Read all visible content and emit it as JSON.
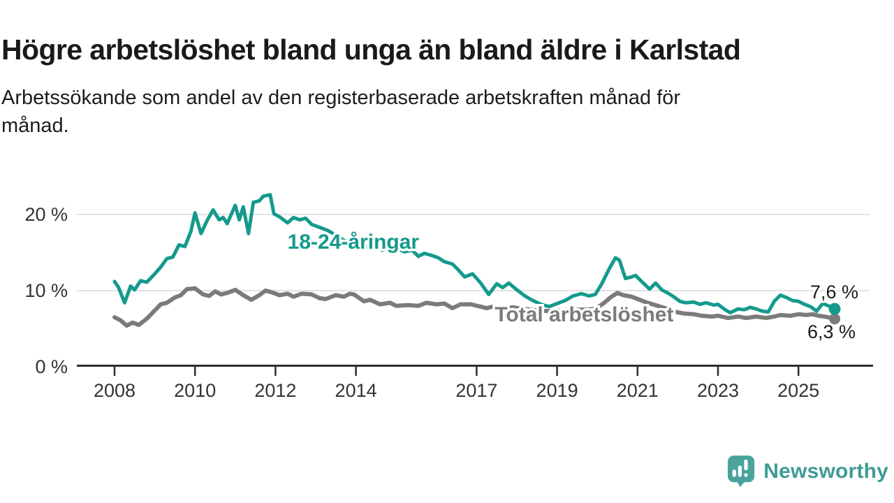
{
  "header": {
    "title": "Högre arbetslöshet bland unga än bland äldre i Karlstad",
    "subtitle_line1": "Arbetssökande som andel av den registerbaserade arbetskraften månad för",
    "subtitle_line2": "månad."
  },
  "chart_data": {
    "type": "line",
    "title": "Högre arbetslöshet bland unga än bland äldre i Karlstad",
    "subtitle": "Arbetssökande som andel av den registerbaserade arbetskraften månad för månad.",
    "unit": "%",
    "grid": "horizontal-only",
    "legend_position": "inline-labels-on-lines",
    "x_axis": {
      "tick_years": [
        2008,
        2010,
        2012,
        2014,
        2017,
        2019,
        2021,
        2023,
        2025
      ],
      "tick_labels": [
        "2008",
        "2010",
        "2012",
        "2014",
        "2017",
        "2019",
        "2021",
        "2023",
        "2025"
      ],
      "range": [
        2007.1,
        2026.8
      ]
    },
    "y_axis": {
      "tick_values": [
        0,
        10,
        20
      ],
      "tick_labels": [
        "0 %",
        "10 %",
        "20 %"
      ],
      "gridline_values": [
        10,
        20
      ],
      "range": [
        0,
        23
      ]
    },
    "series": [
      {
        "name": "Total arbetslöshet",
        "color": "#7b7b7b",
        "end_label": "6,3 %",
        "end_value": 6.3,
        "label_anchor": {
          "year": 2017.45,
          "value": 6.9
        },
        "points": [
          [
            2008.0,
            6.5
          ],
          [
            2008.15,
            6.1
          ],
          [
            2008.3,
            5.4
          ],
          [
            2008.45,
            5.8
          ],
          [
            2008.6,
            5.5
          ],
          [
            2008.8,
            6.3
          ],
          [
            2009.0,
            7.4
          ],
          [
            2009.15,
            8.2
          ],
          [
            2009.3,
            8.4
          ],
          [
            2009.5,
            9.1
          ],
          [
            2009.65,
            9.4
          ],
          [
            2009.8,
            10.2
          ],
          [
            2010.0,
            10.3
          ],
          [
            2010.2,
            9.5
          ],
          [
            2010.35,
            9.3
          ],
          [
            2010.5,
            9.9
          ],
          [
            2010.65,
            9.5
          ],
          [
            2010.8,
            9.7
          ],
          [
            2011.0,
            10.1
          ],
          [
            2011.2,
            9.4
          ],
          [
            2011.4,
            8.8
          ],
          [
            2011.6,
            9.4
          ],
          [
            2011.75,
            10.0
          ],
          [
            2011.9,
            9.8
          ],
          [
            2012.1,
            9.4
          ],
          [
            2012.3,
            9.6
          ],
          [
            2012.45,
            9.2
          ],
          [
            2012.65,
            9.6
          ],
          [
            2012.9,
            9.5
          ],
          [
            2013.1,
            9.0
          ],
          [
            2013.25,
            8.9
          ],
          [
            2013.5,
            9.4
          ],
          [
            2013.7,
            9.2
          ],
          [
            2013.85,
            9.6
          ],
          [
            2013.95,
            9.5
          ],
          [
            2014.2,
            8.6
          ],
          [
            2014.35,
            8.8
          ],
          [
            2014.6,
            8.2
          ],
          [
            2014.85,
            8.4
          ],
          [
            2015.0,
            8.0
          ],
          [
            2015.3,
            8.1
          ],
          [
            2015.55,
            8.0
          ],
          [
            2015.75,
            8.4
          ],
          [
            2016.0,
            8.2
          ],
          [
            2016.2,
            8.3
          ],
          [
            2016.4,
            7.7
          ],
          [
            2016.6,
            8.2
          ],
          [
            2016.85,
            8.2
          ],
          [
            2017.1,
            7.9
          ],
          [
            2017.25,
            7.7
          ],
          [
            2017.4,
            7.9
          ],
          [
            2017.6,
            7.7
          ],
          [
            2017.9,
            7.8
          ],
          [
            2018.2,
            7.6
          ],
          [
            2018.5,
            7.4
          ],
          [
            2018.8,
            7.3
          ],
          [
            2019.1,
            7.4
          ],
          [
            2019.4,
            7.5
          ],
          [
            2019.7,
            7.5
          ],
          [
            2019.95,
            7.6
          ],
          [
            2020.15,
            8.3
          ],
          [
            2020.35,
            9.2
          ],
          [
            2020.5,
            9.7
          ],
          [
            2020.65,
            9.4
          ],
          [
            2020.85,
            9.2
          ],
          [
            2021.05,
            8.8
          ],
          [
            2021.25,
            8.4
          ],
          [
            2021.5,
            8.0
          ],
          [
            2021.75,
            7.6
          ],
          [
            2021.95,
            7.2
          ],
          [
            2022.15,
            7.0
          ],
          [
            2022.4,
            6.9
          ],
          [
            2022.6,
            6.7
          ],
          [
            2022.85,
            6.6
          ],
          [
            2023.0,
            6.7
          ],
          [
            2023.25,
            6.4
          ],
          [
            2023.5,
            6.6
          ],
          [
            2023.7,
            6.4
          ],
          [
            2023.95,
            6.6
          ],
          [
            2024.2,
            6.4
          ],
          [
            2024.4,
            6.6
          ],
          [
            2024.55,
            6.8
          ],
          [
            2024.8,
            6.7
          ],
          [
            2025.0,
            6.9
          ],
          [
            2025.2,
            6.8
          ],
          [
            2025.35,
            6.9
          ],
          [
            2025.5,
            6.7
          ],
          [
            2025.65,
            6.6
          ],
          [
            2025.9,
            6.3
          ]
        ]
      },
      {
        "name": "18-24-åringar",
        "color": "#149a8c",
        "end_label": "7,6 %",
        "end_value": 7.6,
        "label_anchor": {
          "year": 2012.3,
          "value": 16.4
        },
        "points": [
          [
            2008.0,
            11.2
          ],
          [
            2008.1,
            10.4
          ],
          [
            2008.25,
            8.4
          ],
          [
            2008.4,
            10.6
          ],
          [
            2008.5,
            10.1
          ],
          [
            2008.65,
            11.3
          ],
          [
            2008.8,
            11.1
          ],
          [
            2009.0,
            12.2
          ],
          [
            2009.15,
            13.1
          ],
          [
            2009.3,
            14.2
          ],
          [
            2009.45,
            14.4
          ],
          [
            2009.6,
            16.0
          ],
          [
            2009.75,
            15.8
          ],
          [
            2009.9,
            17.8
          ],
          [
            2010.0,
            20.2
          ],
          [
            2010.15,
            17.5
          ],
          [
            2010.3,
            19.2
          ],
          [
            2010.45,
            20.6
          ],
          [
            2010.6,
            19.3
          ],
          [
            2010.7,
            19.6
          ],
          [
            2010.8,
            18.8
          ],
          [
            2011.0,
            21.2
          ],
          [
            2011.1,
            19.3
          ],
          [
            2011.2,
            21.0
          ],
          [
            2011.33,
            17.5
          ],
          [
            2011.45,
            21.6
          ],
          [
            2011.6,
            21.8
          ],
          [
            2011.7,
            22.4
          ],
          [
            2011.87,
            22.6
          ],
          [
            2011.96,
            20.1
          ],
          [
            2012.1,
            19.7
          ],
          [
            2012.2,
            19.3
          ],
          [
            2012.3,
            18.9
          ],
          [
            2012.45,
            19.6
          ],
          [
            2012.6,
            19.3
          ],
          [
            2012.75,
            19.5
          ],
          [
            2012.9,
            18.7
          ],
          [
            2013.1,
            18.3
          ],
          [
            2013.3,
            17.9
          ],
          [
            2013.5,
            17.3
          ],
          [
            2013.7,
            16.6
          ],
          [
            2013.9,
            16.3
          ],
          [
            2014.05,
            15.4
          ],
          [
            2014.2,
            16.0
          ],
          [
            2014.35,
            15.5
          ],
          [
            2014.5,
            15.7
          ],
          [
            2014.65,
            15.3
          ],
          [
            2014.8,
            15.5
          ],
          [
            2015.0,
            15.6
          ],
          [
            2015.2,
            15.1
          ],
          [
            2015.4,
            15.3
          ],
          [
            2015.55,
            14.5
          ],
          [
            2015.7,
            14.9
          ],
          [
            2015.9,
            14.6
          ],
          [
            2016.05,
            14.3
          ],
          [
            2016.2,
            13.8
          ],
          [
            2016.4,
            13.5
          ],
          [
            2016.55,
            12.7
          ],
          [
            2016.7,
            11.8
          ],
          [
            2016.9,
            12.2
          ],
          [
            2017.1,
            11.0
          ],
          [
            2017.3,
            9.5
          ],
          [
            2017.5,
            10.9
          ],
          [
            2017.65,
            10.4
          ],
          [
            2017.8,
            11.0
          ],
          [
            2018.0,
            10.1
          ],
          [
            2018.2,
            9.3
          ],
          [
            2018.4,
            8.7
          ],
          [
            2018.6,
            8.2
          ],
          [
            2018.8,
            7.9
          ],
          [
            2019.0,
            8.3
          ],
          [
            2019.2,
            8.7
          ],
          [
            2019.4,
            9.3
          ],
          [
            2019.6,
            9.6
          ],
          [
            2019.8,
            9.3
          ],
          [
            2019.95,
            9.5
          ],
          [
            2020.1,
            10.8
          ],
          [
            2020.3,
            12.9
          ],
          [
            2020.45,
            14.3
          ],
          [
            2020.55,
            14.0
          ],
          [
            2020.7,
            11.6
          ],
          [
            2020.85,
            11.8
          ],
          [
            2020.95,
            12.0
          ],
          [
            2021.1,
            11.2
          ],
          [
            2021.3,
            10.2
          ],
          [
            2021.45,
            11.0
          ],
          [
            2021.6,
            10.1
          ],
          [
            2021.75,
            9.7
          ],
          [
            2021.9,
            9.2
          ],
          [
            2022.05,
            8.6
          ],
          [
            2022.2,
            8.4
          ],
          [
            2022.4,
            8.5
          ],
          [
            2022.55,
            8.2
          ],
          [
            2022.7,
            8.4
          ],
          [
            2022.9,
            8.1
          ],
          [
            2023.0,
            8.2
          ],
          [
            2023.15,
            7.6
          ],
          [
            2023.3,
            7.1
          ],
          [
            2023.5,
            7.6
          ],
          [
            2023.65,
            7.5
          ],
          [
            2023.8,
            7.8
          ],
          [
            2023.95,
            7.6
          ],
          [
            2024.1,
            7.3
          ],
          [
            2024.25,
            7.2
          ],
          [
            2024.4,
            8.6
          ],
          [
            2024.55,
            9.4
          ],
          [
            2024.7,
            9.1
          ],
          [
            2024.85,
            8.7
          ],
          [
            2025.0,
            8.6
          ],
          [
            2025.15,
            8.2
          ],
          [
            2025.3,
            7.9
          ],
          [
            2025.45,
            7.3
          ],
          [
            2025.6,
            8.3
          ],
          [
            2025.75,
            8.0
          ],
          [
            2025.9,
            7.6
          ]
        ]
      }
    ]
  },
  "footer": {
    "brand": "Newsworthy"
  },
  "colors": {
    "youth_line": "#149a8c",
    "total_line": "#7b7b7b",
    "gridline": "#d9d9d9",
    "axis": "#2d2d2d",
    "axis_text": "#333333",
    "annotation_text": "#1a1a1a",
    "brand_teal": "#3f9b94",
    "brand_icon_teal": "#4aa39d"
  }
}
